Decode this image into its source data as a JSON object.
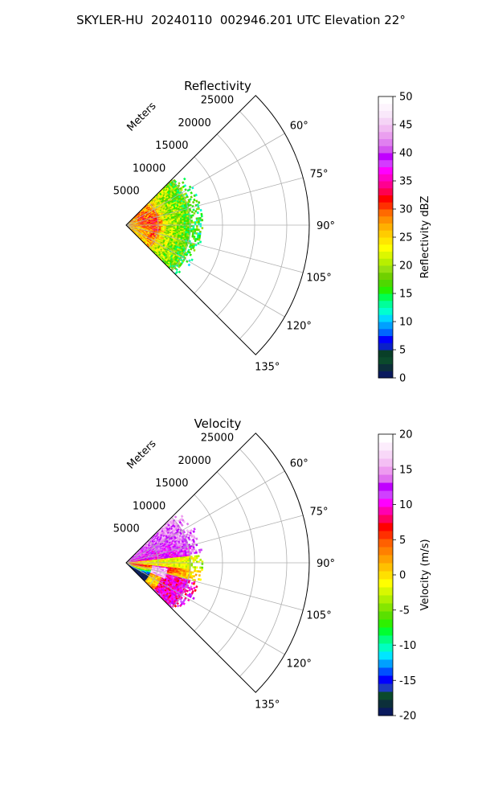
{
  "suptitle": "SKYLER-HU  20240110  002946.201 UTC Elevation 22°",
  "chart_data": [
    {
      "type": "heatmap",
      "projection": "polar-sector",
      "title": "Reflectivity",
      "range_label": "Meters",
      "range_ticks": [
        "5000",
        "10000",
        "15000",
        "20000",
        "25000"
      ],
      "range_values": [
        5000,
        10000,
        15000,
        20000,
        25000
      ],
      "rmax": 28500,
      "angle_ticks": [
        "60°",
        "75°",
        "90°",
        "105°",
        "120°",
        "135°"
      ],
      "angle_values": [
        60,
        75,
        90,
        105,
        120,
        135
      ],
      "angle_range": [
        45,
        135
      ],
      "grid": true,
      "colorbar": {
        "label": "Reflectivity dBZ",
        "vmin": 0,
        "vmax": 50,
        "ticks": [
          "0",
          "5",
          "10",
          "15",
          "20",
          "25",
          "30",
          "35",
          "40",
          "45",
          "50"
        ],
        "tick_values": [
          0,
          5,
          10,
          15,
          20,
          25,
          30,
          35,
          40,
          45,
          50
        ],
        "colors": [
          "#0a1a5e",
          "#0c2f3a",
          "#0b4a2c",
          "#093f28",
          "#0a20c8",
          "#0000ff",
          "#0066ff",
          "#00a0ff",
          "#00d8ff",
          "#00ffd0",
          "#00ff9a",
          "#00ff50",
          "#24f000",
          "#4ed800",
          "#70d000",
          "#96e010",
          "#b8ef00",
          "#dcf700",
          "#ffff00",
          "#ffe600",
          "#ffcc00",
          "#ffb000",
          "#ff9000",
          "#ff6a00",
          "#ff3000",
          "#ff0000",
          "#ff0050",
          "#ff0090",
          "#ff00c8",
          "#ff00ff",
          "#d43bff",
          "#c000ff",
          "#d455f0",
          "#e080f0",
          "#ea9fef",
          "#f1bcf2",
          "#f5d4f6",
          "#f9e8fa",
          "#fdf4fd",
          "#ffffff"
        ]
      },
      "echo": {
        "max_range_m": 12000,
        "angle_extent": [
          45,
          135
        ],
        "description_values_dbz": {
          "near": 28,
          "ring": 36,
          "outer": 17,
          "edge": 12
        }
      }
    },
    {
      "type": "heatmap",
      "projection": "polar-sector",
      "title": "Velocity",
      "range_label": "Meters",
      "range_ticks": [
        "5000",
        "10000",
        "15000",
        "20000",
        "25000"
      ],
      "range_values": [
        5000,
        10000,
        15000,
        20000,
        25000
      ],
      "rmax": 28500,
      "angle_ticks": [
        "60°",
        "75°",
        "90°",
        "105°",
        "120°",
        "135°"
      ],
      "angle_values": [
        60,
        75,
        90,
        105,
        120,
        135
      ],
      "angle_range": [
        45,
        135
      ],
      "grid": true,
      "colorbar": {
        "label": "Velocity (m/s)",
        "vmin": -20,
        "vmax": 20,
        "ticks": [
          "-20",
          "-15",
          "-10",
          "-5",
          "0",
          "5",
          "10",
          "15",
          "20"
        ],
        "tick_values": [
          -20,
          -15,
          -10,
          -5,
          0,
          5,
          10,
          15,
          20
        ],
        "colors": [
          "#0a1a5e",
          "#0c2f3a",
          "#0b4a2c",
          "#1e3ac0",
          "#0000ff",
          "#0050ff",
          "#00a0ff",
          "#00e6ff",
          "#00ffc0",
          "#00ff80",
          "#00ff30",
          "#2ef000",
          "#5ae000",
          "#86e600",
          "#b0f000",
          "#d8f800",
          "#ffff00",
          "#ffe000",
          "#ffc000",
          "#ffa000",
          "#ff8000",
          "#ff6000",
          "#ff3000",
          "#ff0000",
          "#ff0060",
          "#ff00b0",
          "#ff00ff",
          "#d040ff",
          "#c000ff",
          "#e070ef",
          "#ee9bf0",
          "#f4bff4",
          "#f8d8f8",
          "#fcedfc",
          "#ffffff"
        ]
      },
      "echo": {
        "max_range_m": 12000,
        "angle_extent": [
          45,
          135
        ],
        "description_values_ms": {
          "north": 10,
          "center": 0,
          "south_inner": 15,
          "south_outer": 8
        }
      }
    }
  ]
}
